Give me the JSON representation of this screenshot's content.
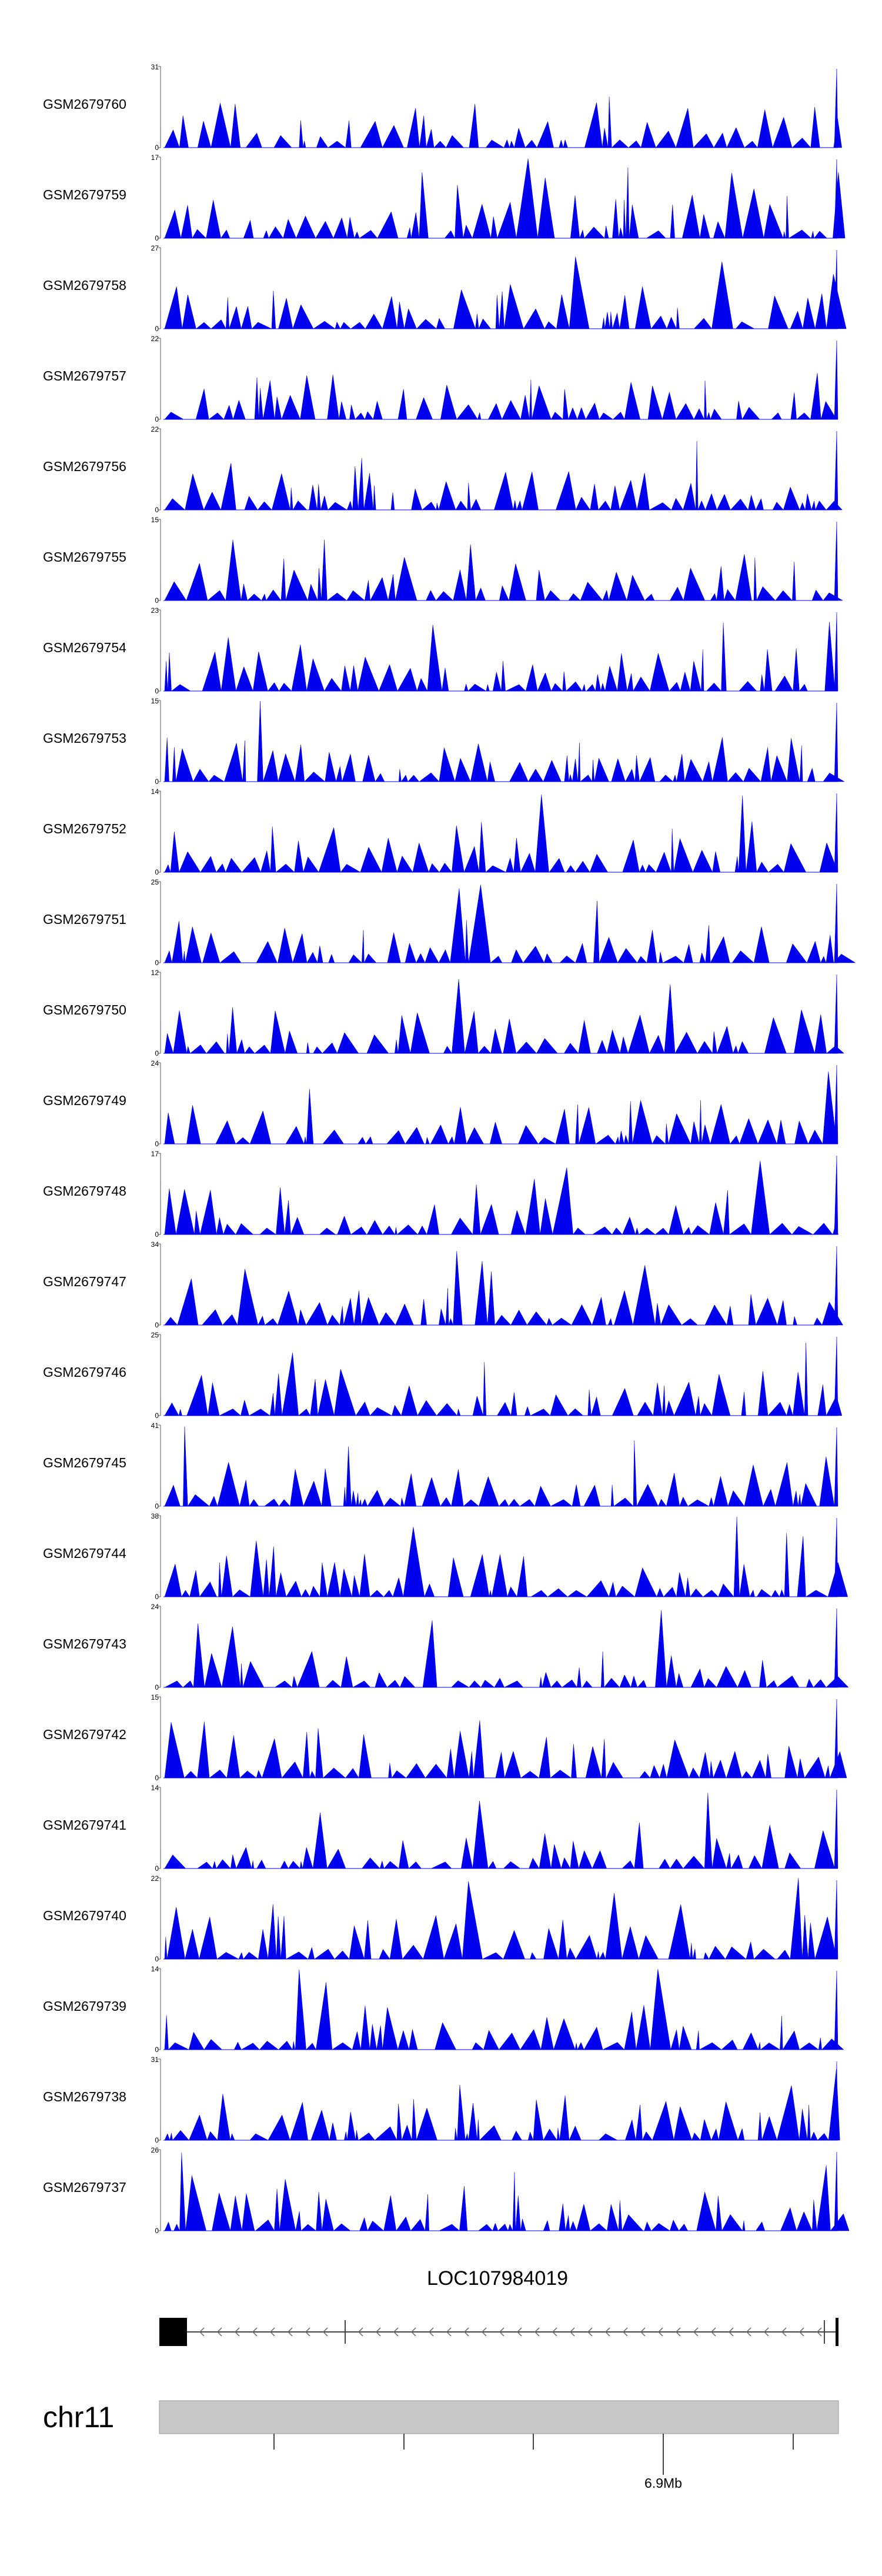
{
  "colors": {
    "signal": "#0000ee",
    "ideogram": "#c8c8c8",
    "axis": "#444444"
  },
  "chart_data": {
    "type": "area",
    "title": "",
    "tracks": [
      {
        "name": "GSM2679760",
        "max": "31",
        "min": "0"
      },
      {
        "name": "GSM2679759",
        "max": "17",
        "min": "0"
      },
      {
        "name": "GSM2679758",
        "max": "27",
        "min": "0"
      },
      {
        "name": "GSM2679757",
        "max": "22",
        "min": "0"
      },
      {
        "name": "GSM2679756",
        "max": "22",
        "min": "0"
      },
      {
        "name": "GSM2679755",
        "max": "15",
        "min": "0"
      },
      {
        "name": "GSM2679754",
        "max": "23",
        "min": "0"
      },
      {
        "name": "GSM2679753",
        "max": "15",
        "min": "0"
      },
      {
        "name": "GSM2679752",
        "max": "14",
        "min": "0"
      },
      {
        "name": "GSM2679751",
        "max": "25",
        "min": "0"
      },
      {
        "name": "GSM2679750",
        "max": "12",
        "min": "0"
      },
      {
        "name": "GSM2679749",
        "max": "24",
        "min": "0"
      },
      {
        "name": "GSM2679748",
        "max": "17",
        "min": "0"
      },
      {
        "name": "GSM2679747",
        "max": "34",
        "min": "0"
      },
      {
        "name": "GSM2679746",
        "max": "25",
        "min": "0"
      },
      {
        "name": "GSM2679745",
        "max": "41",
        "min": "0"
      },
      {
        "name": "GSM2679744",
        "max": "38",
        "min": "0"
      },
      {
        "name": "GSM2679743",
        "max": "24",
        "min": "0"
      },
      {
        "name": "GSM2679742",
        "max": "15",
        "min": "0"
      },
      {
        "name": "GSM2679741",
        "max": "14",
        "min": "0"
      },
      {
        "name": "GSM2679740",
        "max": "22",
        "min": "0"
      },
      {
        "name": "GSM2679739",
        "max": "14",
        "min": "0"
      },
      {
        "name": "GSM2679738",
        "max": "31",
        "min": "0"
      },
      {
        "name": "GSM2679737",
        "max": "26",
        "min": "0"
      }
    ],
    "gene": {
      "name": "LOC107984019",
      "strand": "-"
    },
    "chromosome": {
      "name": "chr11",
      "axis_tick_label": "6.9Mb"
    }
  }
}
